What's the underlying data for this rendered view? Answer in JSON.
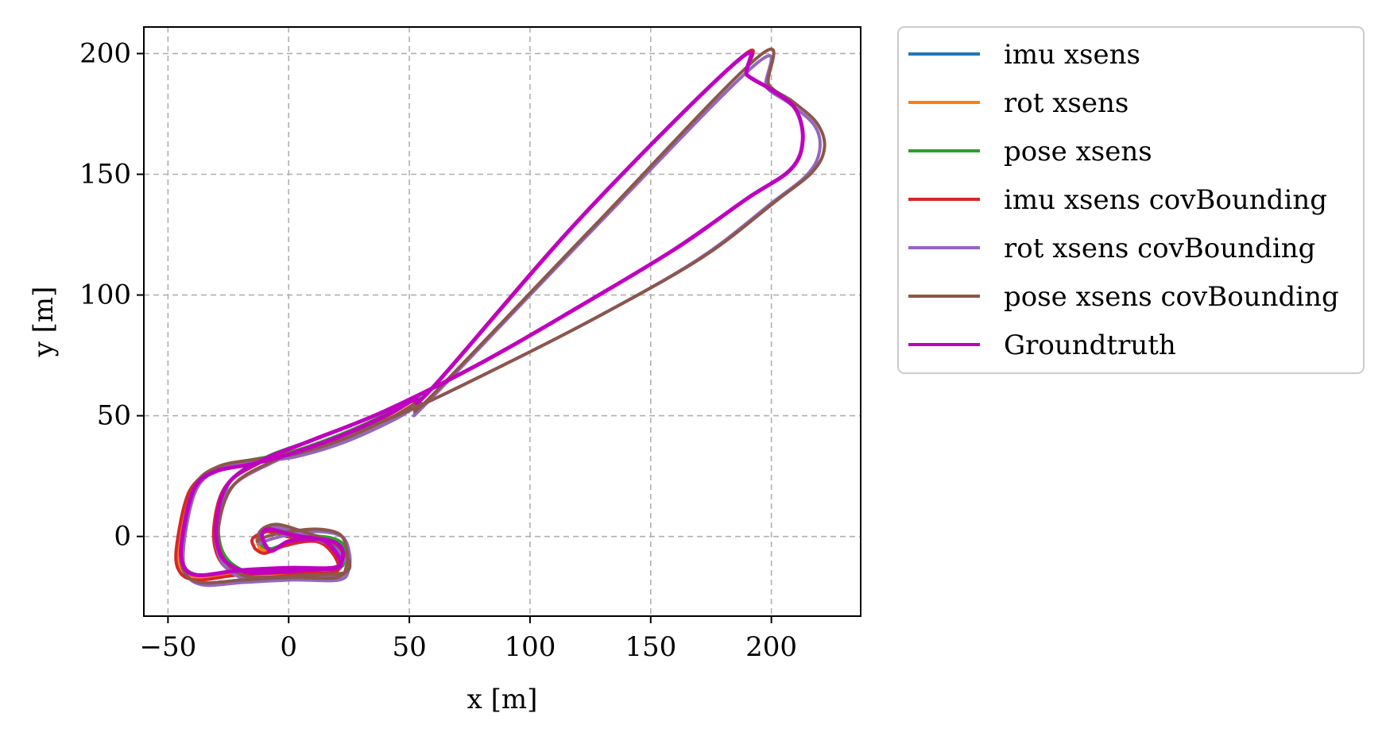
{
  "chart_data": {
    "type": "line",
    "xlabel": "x [m]",
    "ylabel": "y [m]",
    "xlim": [
      -60,
      237
    ],
    "ylim": [
      -33,
      211
    ],
    "xticks": [
      -50,
      0,
      50,
      100,
      150,
      200
    ],
    "yticks": [
      0,
      50,
      100,
      150,
      200
    ],
    "xtick_labels": [
      "−50",
      "0",
      "50",
      "100",
      "150",
      "200"
    ],
    "ytick_labels": [
      "0",
      "50",
      "100",
      "150",
      "200"
    ],
    "grid": true,
    "legend_position": "outside-right-top",
    "series": [
      {
        "name": "imu xsens",
        "color": "#1f77b4",
        "width": 4,
        "x": [
          -12,
          -8,
          0,
          10,
          18,
          22,
          22,
          18,
          0,
          -20,
          -38,
          -45,
          -45,
          -40,
          -30,
          -15,
          0,
          20,
          40,
          52,
          60,
          120,
          186,
          190,
          200,
          210,
          213,
          208,
          190,
          160,
          120,
          80,
          40,
          10,
          -10,
          -25,
          -30,
          -28,
          -20,
          -10,
          5,
          20,
          21,
          15,
          5,
          0,
          -8,
          -13,
          -12
        ],
        "y": [
          -5,
          -6,
          -3,
          -1,
          -2,
          -5,
          -10,
          -14,
          -14,
          -15,
          -17,
          -12,
          0,
          20,
          28,
          31,
          34,
          41,
          50,
          57,
          62,
          131,
          197,
          191,
          185,
          177,
          164,
          152,
          140,
          119,
          95,
          72,
          52,
          40,
          32,
          22,
          5,
          -8,
          -15,
          -16,
          -15,
          -14,
          -9,
          -2,
          0,
          1,
          3,
          0,
          -5
        ]
      },
      {
        "name": "rot xsens",
        "color": "#ff7f0e",
        "width": 4,
        "x": [
          -12,
          -8,
          0,
          10,
          18,
          22,
          22,
          18,
          0,
          -20,
          -38,
          -45,
          -45,
          -40,
          -30,
          -15,
          0,
          20,
          40,
          52,
          60,
          120,
          186,
          190,
          200,
          210,
          213,
          208,
          190,
          160,
          120,
          80,
          40,
          10,
          -10,
          -25,
          -30,
          -28,
          -20,
          -10,
          5,
          20,
          21,
          15,
          5,
          0,
          -8,
          -13,
          -12
        ],
        "y": [
          -5,
          -6,
          -3,
          -1,
          -2,
          -5,
          -10,
          -14,
          -14,
          -15,
          -17,
          -12,
          0,
          20,
          28,
          31,
          34,
          41,
          50,
          57,
          62,
          131,
          197,
          191,
          185,
          177,
          164,
          152,
          140,
          119,
          95,
          72,
          52,
          40,
          32,
          22,
          5,
          -8,
          -15,
          -16,
          -15,
          -14,
          -9,
          -2,
          0,
          1,
          3,
          0,
          -5
        ]
      },
      {
        "name": "pose xsens",
        "color": "#2ca02c",
        "width": 4,
        "x": [
          -11,
          -7,
          1,
          11,
          19,
          23,
          23,
          19,
          1,
          -19,
          -37,
          -44,
          -44,
          -39,
          -29,
          -14,
          1,
          21,
          41,
          53,
          61,
          121,
          186,
          190,
          200,
          210,
          213,
          208,
          190,
          160,
          120,
          80,
          40,
          10,
          -9,
          -24,
          -29,
          -27,
          -19,
          -9,
          6,
          21,
          22,
          16,
          6,
          1,
          -7,
          -12,
          -11
        ],
        "y": [
          -4,
          -5,
          -2,
          0,
          -1,
          -4,
          -9,
          -13,
          -13,
          -14,
          -16,
          -11,
          1,
          21,
          29,
          32,
          35,
          42,
          51,
          58,
          63,
          132,
          197,
          191,
          185,
          177,
          164,
          152,
          140,
          119,
          95,
          72,
          52,
          40,
          33,
          23,
          6,
          -7,
          -14,
          -15,
          -14,
          -13,
          -8,
          -1,
          1,
          2,
          4,
          1,
          -4
        ]
      },
      {
        "name": "imu xsens covBounding",
        "color": "#d62728",
        "width": 4,
        "x": [
          -14,
          -10,
          -2,
          8,
          17,
          21,
          21,
          17,
          -1,
          -21,
          -39,
          -46,
          -46,
          -41,
          -31,
          -16,
          -1,
          19,
          39,
          51,
          59,
          120,
          187,
          190,
          200,
          210,
          213,
          208,
          190,
          160,
          120,
          80,
          40,
          10,
          -11,
          -26,
          -31,
          -29,
          -21,
          -11,
          4,
          19,
          20,
          14,
          4,
          -1,
          -9,
          -15,
          -14
        ],
        "y": [
          -5,
          -7,
          -4,
          -2,
          -3,
          -6,
          -11,
          -15,
          -15,
          -16,
          -18,
          -13,
          -1,
          19,
          27,
          30,
          33,
          40,
          49,
          56,
          61,
          131,
          198,
          191,
          185,
          177,
          164,
          152,
          140,
          119,
          95,
          72,
          52,
          40,
          31,
          21,
          4,
          -9,
          -16,
          -17,
          -16,
          -15,
          -10,
          -3,
          -1,
          0,
          2,
          -1,
          -5
        ]
      },
      {
        "name": "rot xsens covBounding",
        "color": "#9467bd",
        "width": 4,
        "x": [
          -12,
          -7,
          2,
          13,
          22,
          25,
          25,
          21,
          2,
          -18,
          -36,
          -43,
          -43,
          -38,
          -28,
          -12,
          3,
          23,
          43,
          55,
          57,
          125,
          194,
          198,
          208,
          218,
          220,
          215,
          200,
          170,
          128,
          85,
          45,
          12,
          -8,
          -24,
          -30,
          -28,
          -20,
          -9,
          7,
          22,
          24,
          18,
          8,
          2,
          -6,
          -12,
          -12
        ],
        "y": [
          -3,
          -1,
          1,
          2,
          0,
          -6,
          -13,
          -18,
          -18,
          -19,
          -20,
          -14,
          0,
          20,
          28,
          31,
          33,
          39,
          48,
          55,
          55,
          126,
          196,
          186,
          179,
          170,
          160,
          150,
          138,
          115,
          91,
          69,
          50,
          38,
          30,
          20,
          3,
          -10,
          -17,
          -18,
          -17,
          -16,
          -11,
          -4,
          0,
          2,
          4,
          2,
          -3
        ]
      },
      {
        "name": "pose xsens covBounding",
        "color": "#8c564b",
        "width": 4,
        "x": [
          -13,
          -9,
          0,
          12,
          21,
          24,
          24,
          20,
          1,
          -19,
          -37,
          -44,
          -44,
          -39,
          -29,
          -13,
          2,
          22,
          42,
          54,
          58,
          126,
          195,
          199,
          209,
          219,
          222,
          217,
          202,
          172,
          130,
          87,
          47,
          14,
          -7,
          -23,
          -29,
          -27,
          -19,
          -8,
          8,
          23,
          25,
          19,
          9,
          3,
          -5,
          -11,
          -13
        ],
        "y": [
          -2,
          0,
          2,
          3,
          1,
          -5,
          -12,
          -17,
          -17,
          -18,
          -19,
          -13,
          1,
          21,
          29,
          32,
          34,
          40,
          49,
          56,
          57,
          128,
          199,
          187,
          180,
          171,
          161,
          151,
          139,
          116,
          92,
          70,
          51,
          39,
          31,
          21,
          4,
          -9,
          -16,
          -17,
          -16,
          -15,
          -10,
          -3,
          1,
          3,
          5,
          3,
          -2
        ]
      },
      {
        "name": "Groundtruth",
        "color": "#c000c0",
        "width": 5,
        "x": [
          -10,
          -7,
          0,
          10,
          18,
          22,
          22,
          18,
          0,
          -20,
          -38,
          -44,
          -44,
          -39,
          -30,
          -15,
          0,
          20,
          40,
          52,
          60,
          122,
          186,
          190,
          200,
          210,
          213,
          208,
          190,
          160,
          120,
          80,
          40,
          10,
          -10,
          -25,
          -30,
          -28,
          -20,
          -10,
          5,
          20,
          21,
          15,
          5,
          0,
          -8,
          -11,
          -10
        ],
        "y": [
          -3,
          -6,
          -2,
          -1,
          -2,
          -5,
          -10,
          -13,
          -13,
          -14,
          -16,
          -11,
          0,
          20,
          27,
          30,
          34,
          41,
          50,
          57,
          62,
          133,
          197,
          191,
          185,
          177,
          164,
          152,
          140,
          119,
          95,
          72,
          52,
          40,
          32,
          22,
          5,
          -8,
          -14,
          -15,
          -14,
          -13,
          -9,
          -2,
          0,
          1,
          3,
          1,
          -3
        ]
      }
    ]
  }
}
